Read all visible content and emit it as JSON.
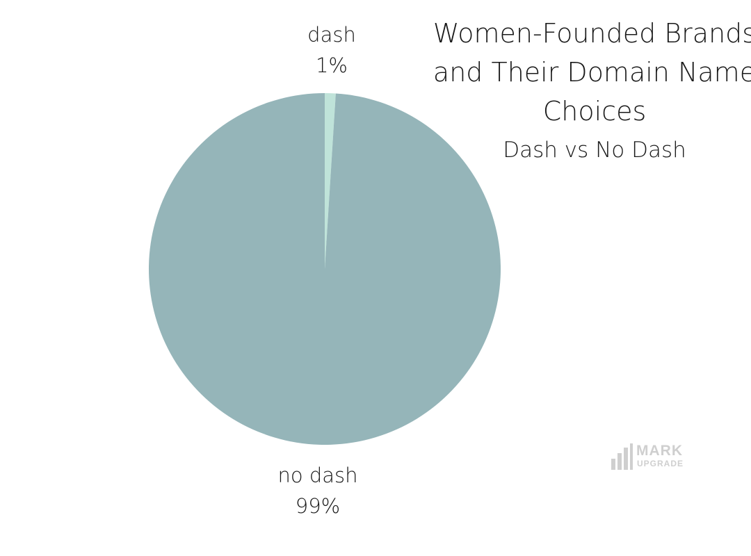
{
  "chart_data": {
    "type": "pie",
    "title": "Women-Founded Brands and Their Domain Name Choices",
    "subtitle": "Dash vs No Dash",
    "slices": [
      {
        "label": "dash",
        "value": 1,
        "display": "1%",
        "color": "#bfe3d9"
      },
      {
        "label": "no dash",
        "value": 99,
        "display": "99%",
        "color": "#95b5b9"
      }
    ]
  },
  "logo": {
    "line1": "MARK",
    "line2": "UPGRADE",
    "color": "#cfcfcf"
  }
}
